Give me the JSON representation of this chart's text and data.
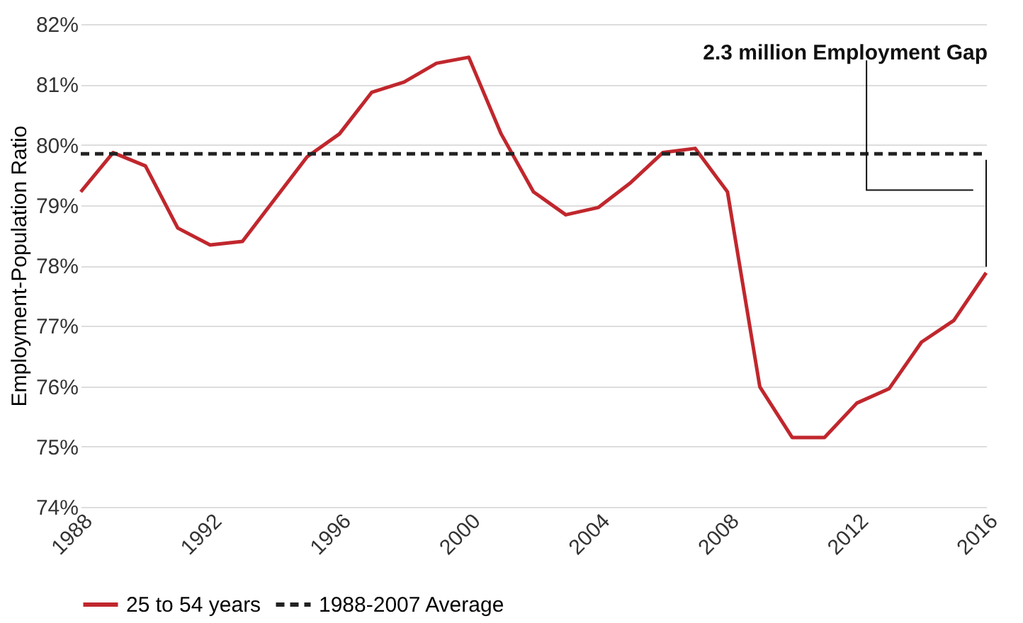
{
  "chart_data": {
    "type": "line",
    "ylabel": "Employment-Population Ratio",
    "x": [
      1988,
      1989,
      1990,
      1991,
      1992,
      1993,
      1994,
      1995,
      1996,
      1997,
      1998,
      1999,
      2000,
      2001,
      2002,
      2003,
      2004,
      2005,
      2006,
      2007,
      2008,
      2009,
      2010,
      2011,
      2012,
      2013,
      2014,
      2015,
      2016
    ],
    "series": [
      {
        "name": "25 to 54 years",
        "color": "#c0272d",
        "values": [
          79.22,
          79.87,
          79.65,
          78.62,
          78.34,
          78.4,
          79.1,
          79.8,
          80.18,
          80.87,
          81.04,
          81.35,
          81.45,
          80.18,
          79.22,
          78.84,
          78.96,
          79.37,
          79.87,
          79.94,
          79.22,
          75.99,
          75.15,
          75.15,
          75.72,
          75.96,
          76.73,
          77.09,
          77.88
        ]
      }
    ],
    "ref_lines": [
      {
        "axis": "y",
        "value": 79.85,
        "label": "1988-2007 Average",
        "color": "#222222",
        "line_style": "dashed"
      }
    ],
    "annotations": [
      "2.3 million Employment Gap"
    ],
    "xlim": [
      1988,
      2016
    ],
    "xticks": [
      1988,
      1992,
      1996,
      2000,
      2004,
      2008,
      2012,
      2016
    ],
    "ylim": [
      74,
      82
    ],
    "yticks": [
      {
        "value": 74,
        "label": "74%"
      },
      {
        "value": 75,
        "label": "75%"
      },
      {
        "value": 76,
        "label": "76%"
      },
      {
        "value": 77,
        "label": "77%"
      },
      {
        "value": 78,
        "label": "78%"
      },
      {
        "value": 79,
        "label": "79%"
      },
      {
        "value": 80,
        "label": "80%"
      },
      {
        "value": 81,
        "label": "81%"
      },
      {
        "value": 82,
        "label": "82%"
      }
    ],
    "grid": "y",
    "legend": "bottom",
    "marker": "none",
    "line_style": "solid"
  }
}
